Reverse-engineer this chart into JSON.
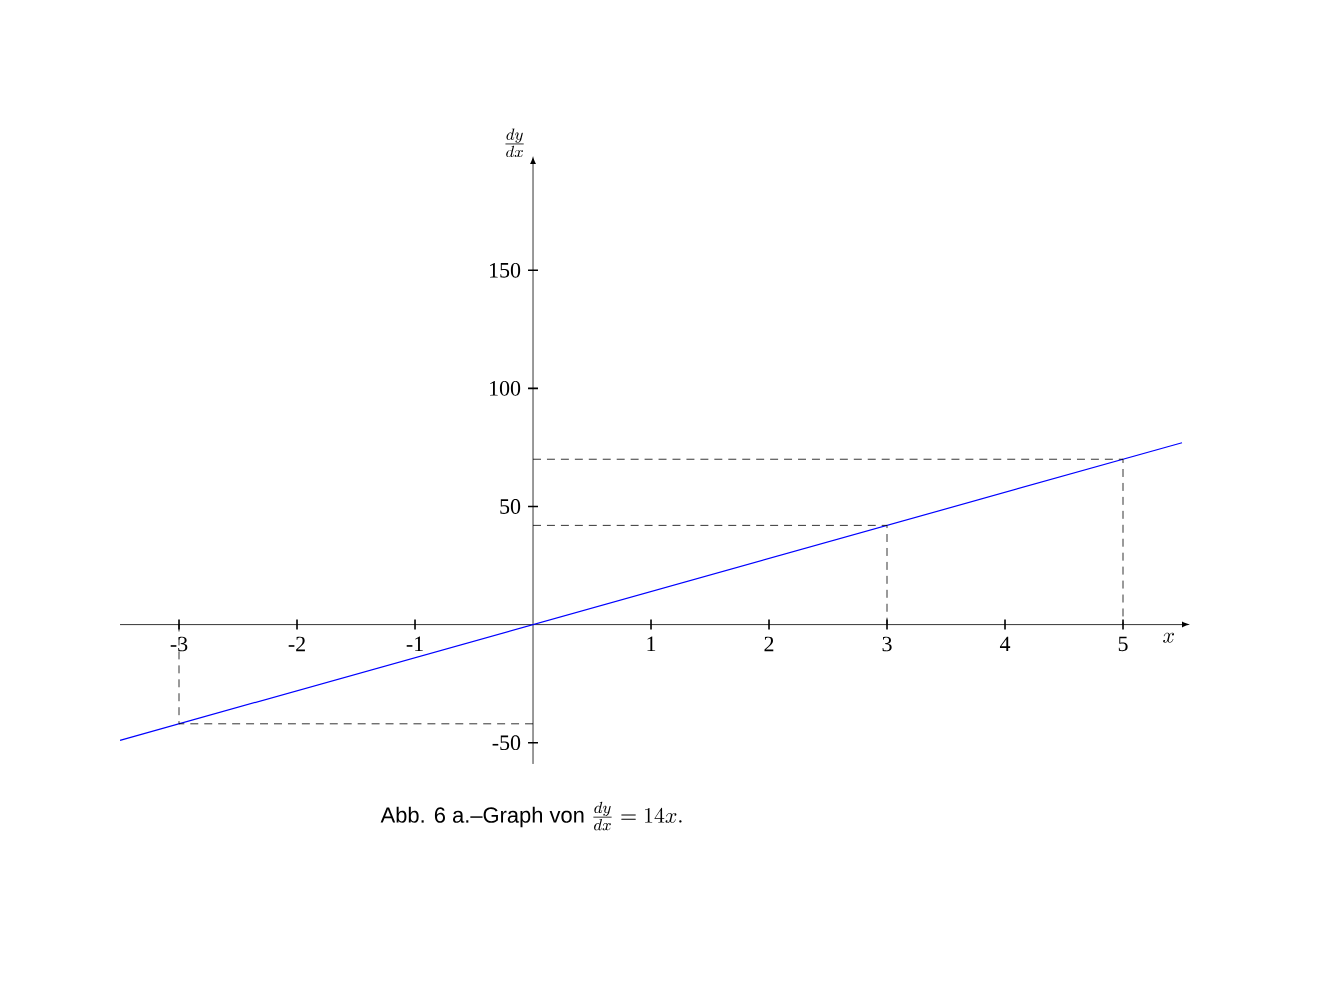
{
  "chart_data": {
    "type": "line",
    "xlabel": "x",
    "ylabel": "\\frac{dy}{dx}",
    "annotations": [
      "Abb. 6 a.–Graph von",
      "\\frac{dy}{dx} = 14x."
    ],
    "xlim": [
      -3.5,
      5.5
    ],
    "ylim": [
      -59,
      195
    ],
    "xticks": [
      -3,
      -2,
      -1,
      1,
      2,
      3,
      4,
      5
    ],
    "yticks": [
      -50,
      50,
      100,
      150
    ],
    "grid": false,
    "marker": "none",
    "series": [
      {
        "color": "#0000ff",
        "line_style": "solid",
        "x": [
          -3.5,
          5.5
        ],
        "values": [
          -49,
          77
        ]
      },
      {
        "color": "#000000",
        "line_style": "dashed",
        "x": [
          0,
          5,
          5
        ],
        "values": [
          70,
          70,
          0
        ]
      },
      {
        "color": "#000000",
        "line_style": "dashed",
        "x": [
          0,
          3,
          3
        ],
        "values": [
          42,
          42,
          0
        ]
      },
      {
        "color": "#000000",
        "line_style": "dashed",
        "x": [
          0,
          -3,
          -3
        ],
        "values": [
          -42,
          -42,
          0
        ]
      }
    ]
  }
}
